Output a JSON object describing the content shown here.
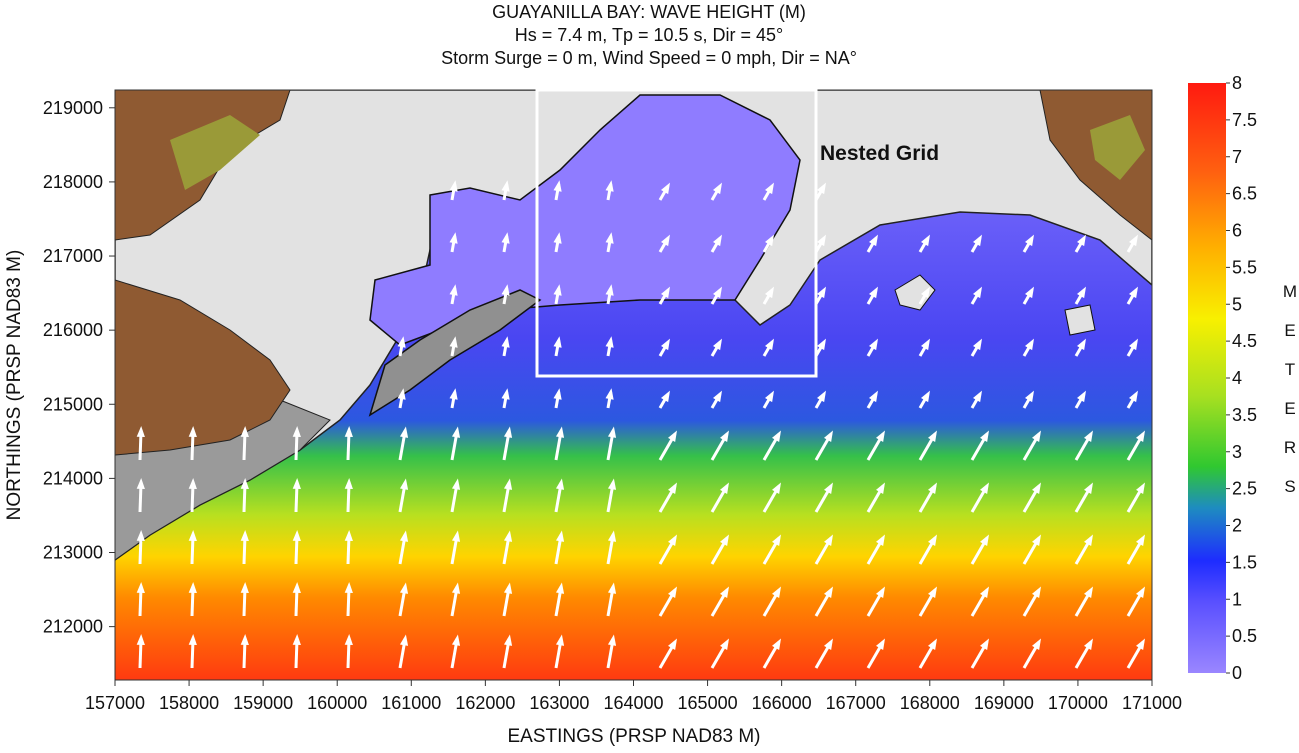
{
  "chart_data": {
    "type": "map",
    "title": "GUAYANILLA BAY: WAVE HEIGHT (M)",
    "subtitle": [
      "Hs = 7.4 m, Tp = 10.5 s, Dir = 45°",
      "Storm Surge = 0 m, Wind Speed = 0 mph, Dir = NA°"
    ],
    "x_label": "EASTINGS (PRSP NAD83 M)",
    "y_label": "NORTHINGS (PRSP NAD83 M)",
    "xlim": [
      157000,
      171000
    ],
    "ylim": [
      211280,
      219240
    ],
    "xticks": [
      157000,
      158000,
      159000,
      160000,
      161000,
      162000,
      163000,
      164000,
      165000,
      166000,
      167000,
      168000,
      169000,
      170000,
      171000
    ],
    "yticks": [
      212000,
      213000,
      214000,
      215000,
      216000,
      217000,
      218000,
      219000
    ],
    "annotation": "Nested Grid",
    "colorbar": {
      "label": "METERS",
      "lim": [
        0,
        8
      ],
      "ticks": [
        0,
        0.5,
        1,
        1.5,
        2,
        2.5,
        3,
        3.5,
        4,
        4.5,
        5,
        5.5,
        6,
        6.5,
        7,
        7.5,
        8
      ]
    }
  }
}
